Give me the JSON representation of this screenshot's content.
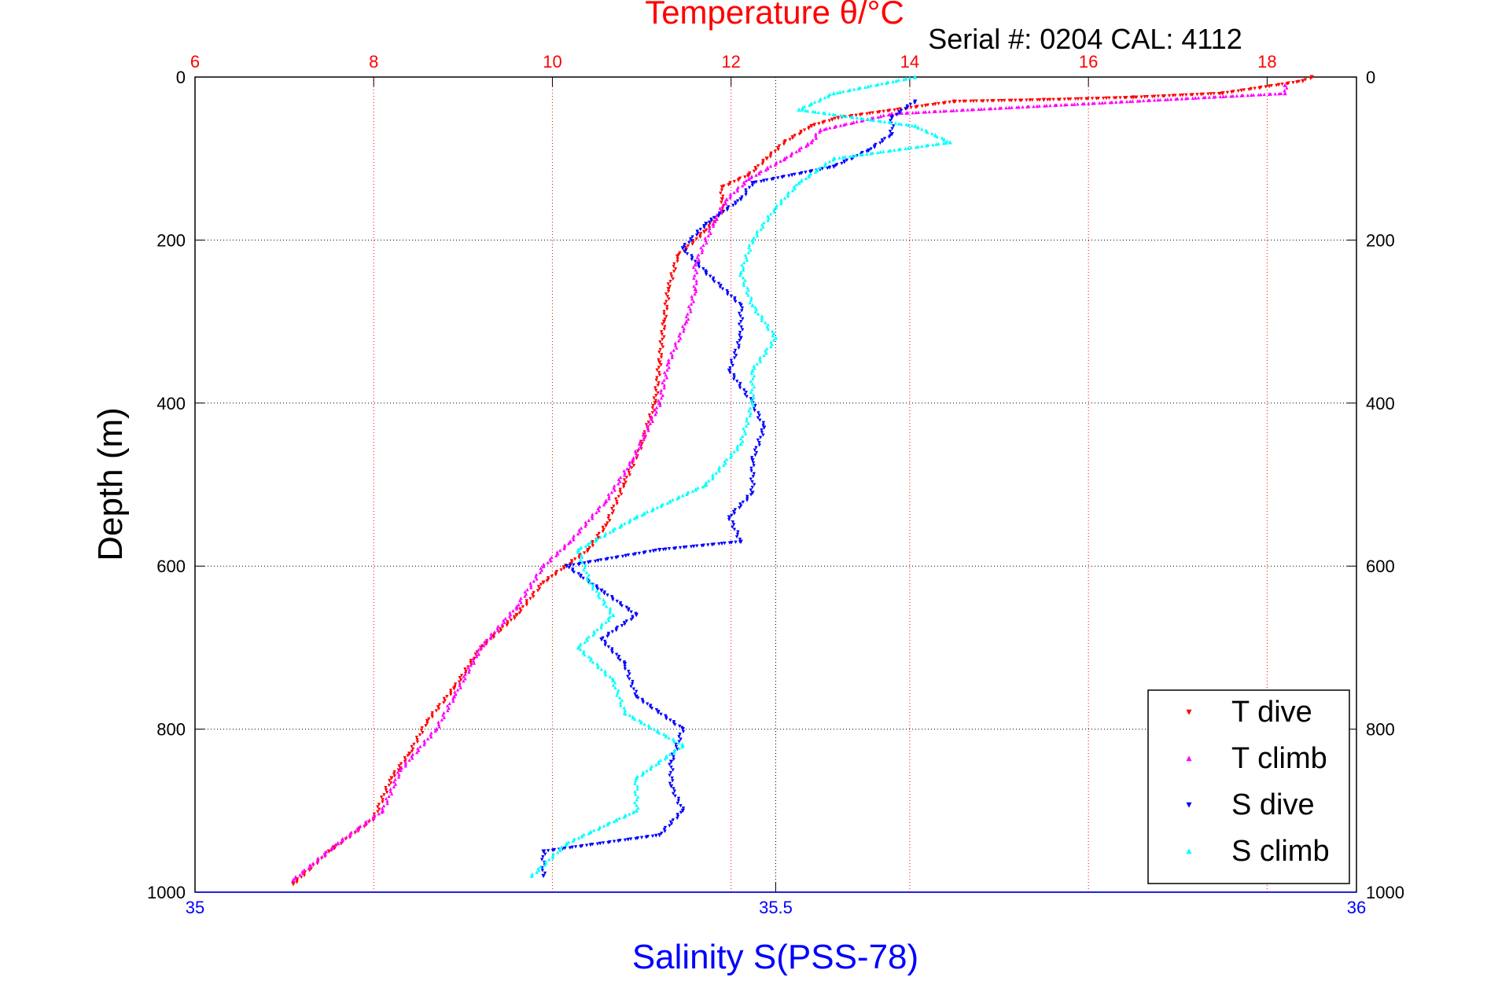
{
  "chart_data": {
    "type": "scatter",
    "title": "Temperature θ/°C",
    "annotation": "Serial #: 0204  CAL: 4112",
    "xlabel": "Salinity S(PSS-78)",
    "ylabel": "Depth (m)",
    "top_axis": {
      "label": "Temperature θ/°C",
      "range": [
        6,
        19
      ],
      "ticks": [
        "6",
        "8",
        "10",
        "12",
        "14",
        "16",
        "18"
      ],
      "color": "#ff0000"
    },
    "bottom_axis": {
      "label": "Salinity S(PSS-78)",
      "range": [
        35,
        36
      ],
      "ticks": [
        "35",
        "35.5",
        "36"
      ],
      "color": "#0000ff"
    },
    "y_axis": {
      "range": [
        0,
        1000
      ],
      "reversed": true,
      "ticks": [
        "0",
        "200",
        "400",
        "600",
        "800",
        "1000"
      ]
    },
    "grid": true,
    "legend_position": "bottom-right",
    "series": [
      {
        "name": "T dive",
        "axis": "temperature",
        "color": "#ff0000",
        "marker": "triangle-down",
        "points": [
          [
            18.5,
            0
          ],
          [
            18.4,
            5
          ],
          [
            17.5,
            20
          ],
          [
            16.5,
            25
          ],
          [
            15.5,
            28
          ],
          [
            14.5,
            30
          ],
          [
            13.2,
            50
          ],
          [
            12.9,
            60
          ],
          [
            12.6,
            80
          ],
          [
            12.4,
            100
          ],
          [
            12.2,
            120
          ],
          [
            11.9,
            135
          ],
          [
            11.9,
            150
          ],
          [
            11.9,
            165
          ],
          [
            11.7,
            190
          ],
          [
            11.4,
            220
          ],
          [
            11.3,
            260
          ],
          [
            11.25,
            300
          ],
          [
            11.2,
            350
          ],
          [
            11.15,
            400
          ],
          [
            11.0,
            450
          ],
          [
            10.8,
            500
          ],
          [
            10.6,
            550
          ],
          [
            10.4,
            580
          ],
          [
            9.9,
            620
          ],
          [
            9.6,
            660
          ],
          [
            9.2,
            700
          ],
          [
            8.9,
            750
          ],
          [
            8.6,
            790
          ],
          [
            8.4,
            830
          ],
          [
            8.2,
            860
          ],
          [
            8.0,
            910
          ],
          [
            7.5,
            950
          ],
          [
            7.1,
            990
          ]
        ]
      },
      {
        "name": "T climb",
        "axis": "temperature",
        "color": "#ff00ff",
        "marker": "triangle-up",
        "points": [
          [
            18.2,
            10
          ],
          [
            18.2,
            20
          ],
          [
            13.8,
            45
          ],
          [
            13.0,
            65
          ],
          [
            12.9,
            80
          ],
          [
            12.6,
            100
          ],
          [
            12.2,
            125
          ],
          [
            11.95,
            150
          ],
          [
            11.8,
            180
          ],
          [
            11.6,
            230
          ],
          [
            11.6,
            260
          ],
          [
            11.5,
            300
          ],
          [
            11.3,
            350
          ],
          [
            11.2,
            400
          ],
          [
            10.9,
            470
          ],
          [
            10.6,
            520
          ],
          [
            10.2,
            570
          ],
          [
            9.9,
            600
          ],
          [
            9.6,
            650
          ],
          [
            9.2,
            700
          ],
          [
            8.9,
            760
          ],
          [
            8.7,
            800
          ],
          [
            8.3,
            850
          ],
          [
            8.1,
            900
          ],
          [
            7.6,
            940
          ],
          [
            7.1,
            985
          ]
        ]
      },
      {
        "name": "S dive",
        "axis": "salinity",
        "color": "#0000ff",
        "marker": "triangle-down",
        "points": [
          [
            35.62,
            30
          ],
          [
            35.6,
            50
          ],
          [
            35.6,
            70
          ],
          [
            35.58,
            90
          ],
          [
            35.55,
            110
          ],
          [
            35.48,
            130
          ],
          [
            35.47,
            150
          ],
          [
            35.44,
            180
          ],
          [
            35.42,
            210
          ],
          [
            35.44,
            240
          ],
          [
            35.47,
            280
          ],
          [
            35.47,
            320
          ],
          [
            35.46,
            360
          ],
          [
            35.48,
            400
          ],
          [
            35.49,
            430
          ],
          [
            35.48,
            470
          ],
          [
            35.48,
            510
          ],
          [
            35.46,
            540
          ],
          [
            35.47,
            570
          ],
          [
            35.4,
            580
          ],
          [
            35.32,
            600
          ],
          [
            35.35,
            630
          ],
          [
            35.38,
            660
          ],
          [
            35.35,
            690
          ],
          [
            35.37,
            720
          ],
          [
            35.38,
            760
          ],
          [
            35.42,
            800
          ],
          [
            35.41,
            840
          ],
          [
            35.41,
            870
          ],
          [
            35.42,
            900
          ],
          [
            35.4,
            930
          ],
          [
            35.3,
            950
          ],
          [
            35.3,
            980
          ]
        ]
      },
      {
        "name": "S climb",
        "axis": "salinity",
        "color": "#00ffff",
        "marker": "triangle-up",
        "points": [
          [
            35.62,
            0
          ],
          [
            35.55,
            20
          ],
          [
            35.52,
            40
          ],
          [
            35.62,
            60
          ],
          [
            35.65,
            80
          ],
          [
            35.55,
            100
          ],
          [
            35.52,
            130
          ],
          [
            35.5,
            160
          ],
          [
            35.48,
            200
          ],
          [
            35.47,
            240
          ],
          [
            35.48,
            280
          ],
          [
            35.5,
            320
          ],
          [
            35.48,
            360
          ],
          [
            35.48,
            400
          ],
          [
            35.47,
            450
          ],
          [
            35.44,
            500
          ],
          [
            35.38,
            540
          ],
          [
            35.33,
            580
          ],
          [
            35.34,
            620
          ],
          [
            35.36,
            660
          ],
          [
            35.33,
            700
          ],
          [
            35.36,
            740
          ],
          [
            35.37,
            780
          ],
          [
            35.42,
            820
          ],
          [
            35.38,
            860
          ],
          [
            35.38,
            900
          ],
          [
            35.32,
            940
          ],
          [
            35.29,
            980
          ]
        ]
      }
    ]
  }
}
